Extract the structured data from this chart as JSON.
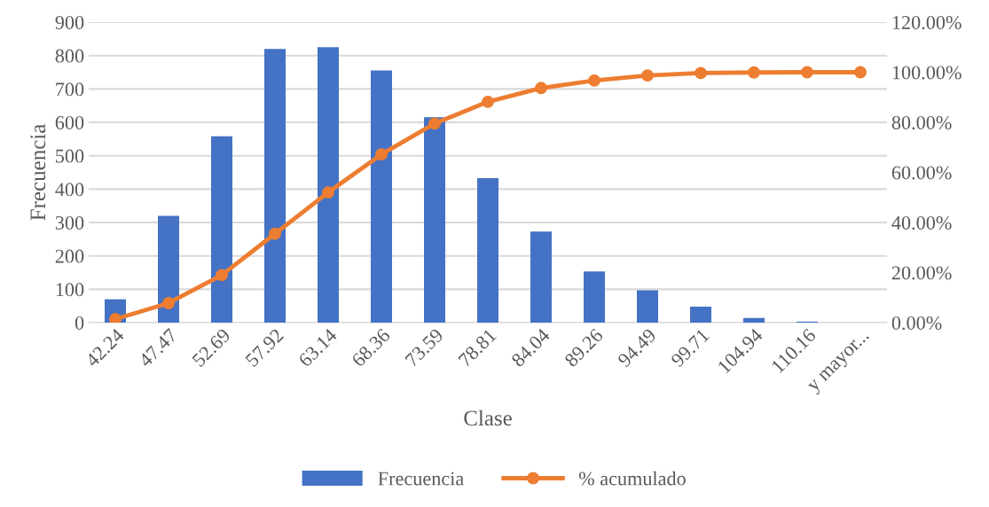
{
  "chart_data": {
    "type": "bar",
    "xlabel": "Clase",
    "ylabel": "Frecuencia",
    "categories": [
      "42.24",
      "47.47",
      "52.69",
      "57.92",
      "63.14",
      "68.36",
      "73.59",
      "78.81",
      "84.04",
      "89.26",
      "94.49",
      "99.71",
      "104.94",
      "110.16",
      "y mayor..."
    ],
    "series": [
      {
        "name": "Frecuencia",
        "color": "#4472c4",
        "values": [
          70,
          320,
          558,
          820,
          825,
          755,
          615,
          433,
          273,
          153,
          97,
          48,
          14,
          3,
          0
        ]
      },
      {
        "name": "% acumulado",
        "type": "line",
        "axis": "y2",
        "color": "#ed7d31",
        "marker": "circle",
        "values": [
          1.4,
          7.8,
          19.0,
          35.5,
          52.0,
          67.2,
          79.5,
          88.2,
          93.7,
          96.7,
          98.7,
          99.7,
          99.9,
          100,
          100
        ]
      }
    ],
    "ylim": [
      0,
      900
    ],
    "yticks": [
      0,
      100,
      200,
      300,
      400,
      500,
      600,
      700,
      800,
      900
    ],
    "y2lim": [
      0,
      120
    ],
    "y2ticks": [
      {
        "value": 0,
        "label": "0.00%"
      },
      {
        "value": 20,
        "label": "20.00%"
      },
      {
        "value": 40,
        "label": "40.00%"
      },
      {
        "value": 60,
        "label": "60.00%"
      },
      {
        "value": 80,
        "label": "80.00%"
      },
      {
        "value": 100,
        "label": "100.00%"
      },
      {
        "value": 120,
        "label": "120.00%"
      }
    ],
    "grid": "y",
    "legend": "bottom"
  }
}
